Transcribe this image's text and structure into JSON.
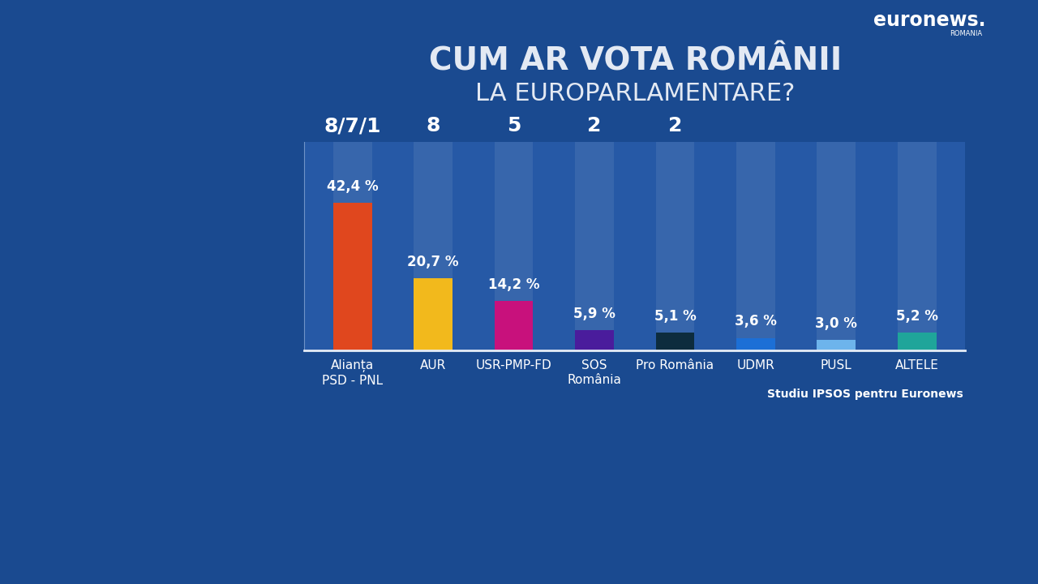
{
  "chart_data": {
    "type": "bar",
    "title": "CUM AR VOTA ROMÂNII",
    "subtitle": "LA EUROPARLAMENTARE?",
    "categories": [
      "Alianța\nPSD - PNL",
      "AUR",
      "USR-PMP-FD",
      "SOS\nRomânia",
      "Pro România",
      "UDMR",
      "PUSL",
      "ALTELE"
    ],
    "values": [
      42.4,
      20.7,
      14.2,
      5.9,
      5.1,
      3.6,
      3.0,
      5.2
    ],
    "value_labels": [
      "42,4 %",
      "20,7 %",
      "14,2 %",
      "5,9 %",
      "5,1 %",
      "3,6 %",
      "3,0 %",
      "5,2 %"
    ],
    "seat_labels": [
      "8/7/1",
      "8",
      "5",
      "2",
      "2",
      null,
      null,
      null
    ],
    "colors": [
      "#e0471e",
      "#f2b91c",
      "#c8117c",
      "#4a1c9c",
      "#0d2c3e",
      "#1c6fd6",
      "#6db4ec",
      "#1fa59a"
    ],
    "ylim": [
      0,
      60
    ],
    "yticks": [],
    "data_labels": true,
    "tick_labels": "x",
    "grid": false,
    "source": "Studiu IPSOS pentru Euronews",
    "brand": {
      "name": "euronews.",
      "edition": "ROMANIA"
    }
  }
}
